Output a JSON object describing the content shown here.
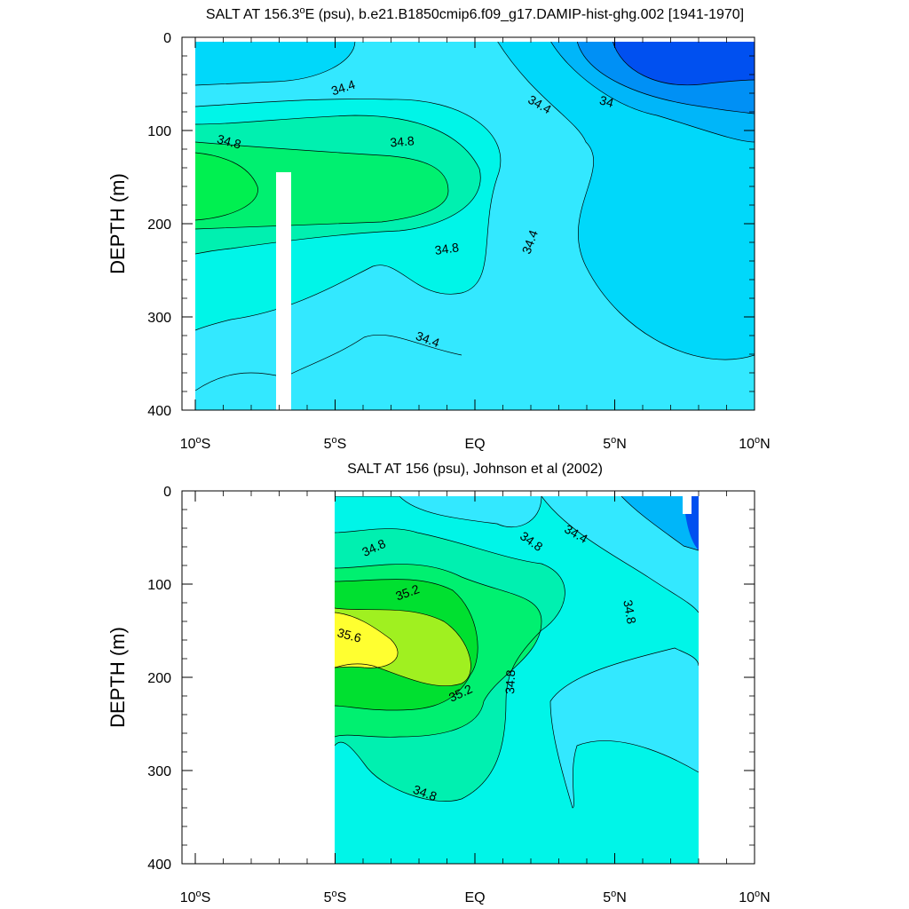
{
  "chart_data": [
    {
      "type": "contour",
      "title": "SALT AT 156.3°E (psu), b.e21.B1850cmip6.f09_g17.DAMIP-hist-ghg.002 [1941-1970]",
      "title_main": "SALT AT 156.3",
      "title_sup": "o",
      "title_rest": "E (psu), b.e21.B1850cmip6.f09_g17.DAMIP-hist-ghg.002 [1941-1970]",
      "ylabel": "DEPTH (m)",
      "xlim": [
        -10,
        10
      ],
      "ylim": [
        400,
        0
      ],
      "yticks": [
        "0",
        "100",
        "200",
        "300",
        "400"
      ],
      "xticks": [
        {
          "main": "10",
          "sup": "o",
          "rest": "S"
        },
        {
          "main": "5",
          "sup": "o",
          "rest": "S"
        },
        {
          "main": "EQ",
          "sup": "",
          "rest": ""
        },
        {
          "main": "5",
          "sup": "o",
          "rest": "N"
        },
        {
          "main": "10",
          "sup": "o",
          "rest": "N"
        }
      ],
      "contour_labels": [
        {
          "text": "34.4",
          "lat": -4.7,
          "depth": 55,
          "angle": -18
        },
        {
          "text": "34.4",
          "lat": 2.3,
          "depth": 73,
          "angle": 30
        },
        {
          "text": "34",
          "lat": 4.7,
          "depth": 70,
          "angle": 15
        },
        {
          "text": "34.8",
          "lat": -8.8,
          "depth": 113,
          "angle": 15
        },
        {
          "text": "34.8",
          "lat": -2.6,
          "depth": 113,
          "angle": -5
        },
        {
          "text": "34.8",
          "lat": -1.0,
          "depth": 228,
          "angle": -8
        },
        {
          "text": "34.4",
          "lat": 2.0,
          "depth": 220,
          "angle": -70
        },
        {
          "text": "34.4",
          "lat": -1.7,
          "depth": 325,
          "angle": 20
        }
      ],
      "colors": [
        "#0050f0",
        "#0090f5",
        "#00b6f9",
        "#00d8fa",
        "#33e8ff",
        "#00f5e8",
        "#00f0b0",
        "#00f070",
        "#00f050"
      ]
    },
    {
      "type": "contour",
      "title": "SALT AT 156 (psu), Johnson et al (2002)",
      "ylabel": "DEPTH (m)",
      "xlim": [
        -10,
        10
      ],
      "ylim": [
        400,
        0
      ],
      "yticks": [
        "0",
        "100",
        "200",
        "300",
        "400"
      ],
      "xticks": [
        {
          "main": "10",
          "sup": "o",
          "rest": "S"
        },
        {
          "main": "5",
          "sup": "o",
          "rest": "S"
        },
        {
          "main": "EQ",
          "sup": "",
          "rest": ""
        },
        {
          "main": "5",
          "sup": "o",
          "rest": "N"
        },
        {
          "main": "10",
          "sup": "o",
          "rest": "N"
        }
      ],
      "data_range_lat": [
        -5,
        8
      ],
      "contour_labels": [
        {
          "text": "34.8",
          "lat": -3.6,
          "depth": 62,
          "angle": -25
        },
        {
          "text": "34.8",
          "lat": 2.0,
          "depth": 55,
          "angle": 35
        },
        {
          "text": "34.4",
          "lat": 3.6,
          "depth": 47,
          "angle": 30
        },
        {
          "text": "35.2",
          "lat": -2.4,
          "depth": 110,
          "angle": -20
        },
        {
          "text": "34.8",
          "lat": 5.5,
          "depth": 130,
          "angle": 80
        },
        {
          "text": "35.6",
          "lat": -4.5,
          "depth": 156,
          "angle": 15
        },
        {
          "text": "35.2",
          "lat": -0.5,
          "depth": 218,
          "angle": -25
        },
        {
          "text": "34.8",
          "lat": 1.3,
          "depth": 205,
          "angle": -88
        },
        {
          "text": "34.8",
          "lat": -1.8,
          "depth": 325,
          "angle": 20
        }
      ],
      "colors": [
        "#0050f0",
        "#00b6f9",
        "#33e8ff",
        "#00f5e8",
        "#00f0b0",
        "#00f070",
        "#00e030",
        "#a0f020",
        "#ffff30"
      ]
    }
  ]
}
